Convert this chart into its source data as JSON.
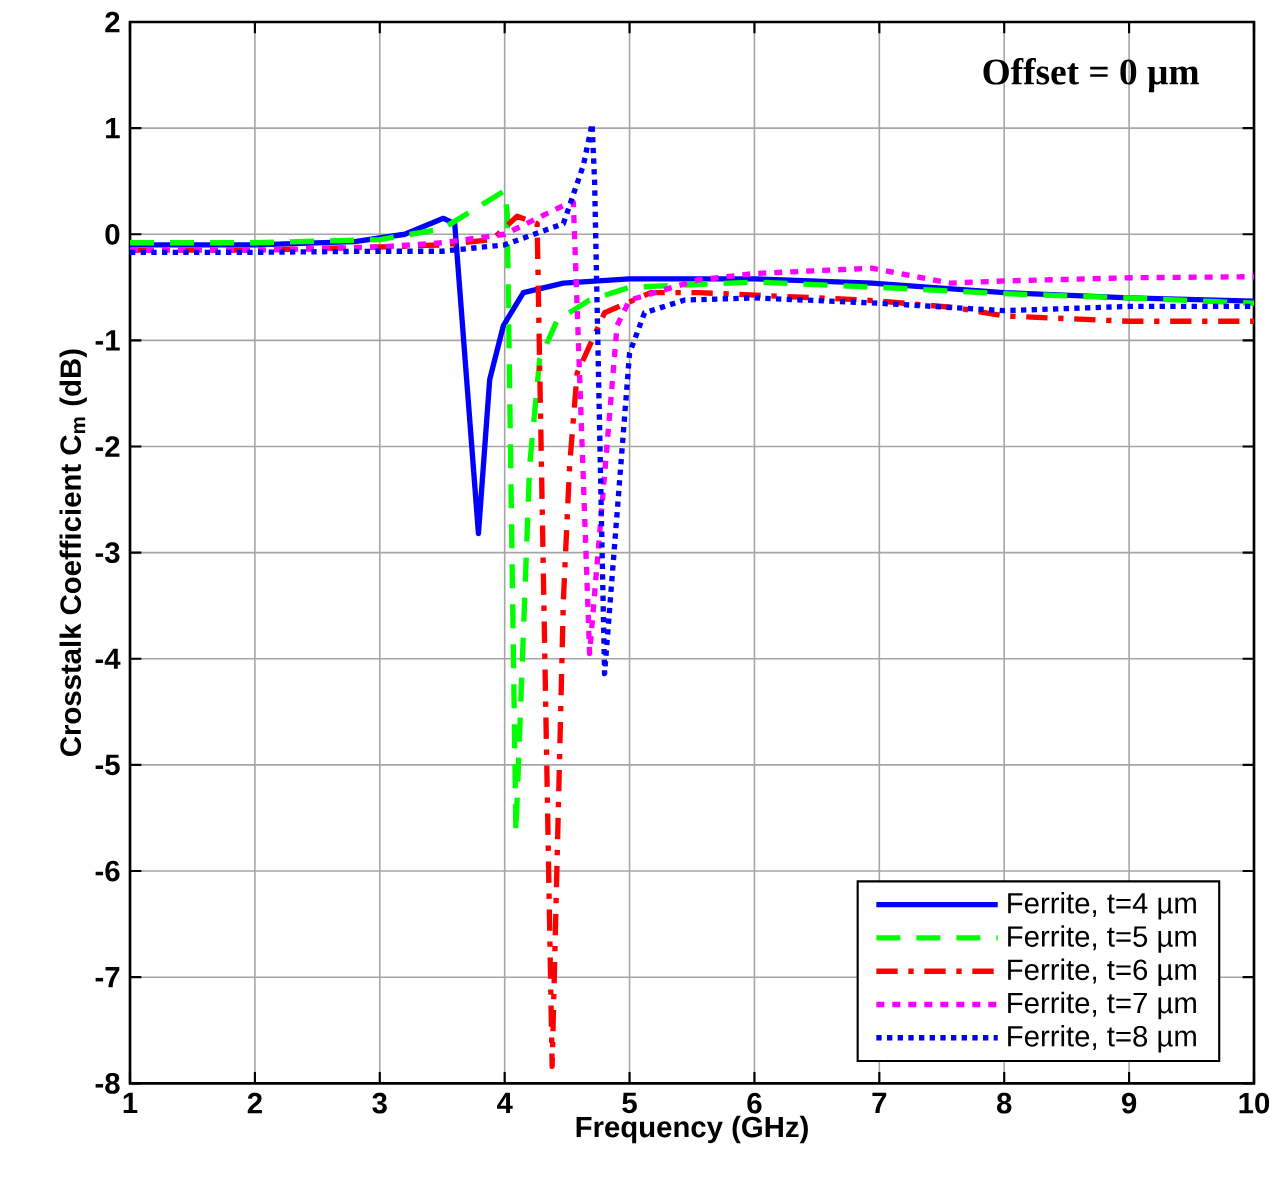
{
  "chart_data": {
    "type": "line",
    "xlabel": "Frequency (GHz)",
    "ylabel": "Crosstalk Coefficient C$_{m}$ (dB)",
    "annotations": [
      "**Offset = 0 µm**"
    ],
    "xlim": [
      1,
      10
    ],
    "ylim": [
      -8,
      2
    ],
    "xticks": [
      1,
      2,
      3,
      4,
      5,
      6,
      7,
      8,
      9,
      10
    ],
    "yticks": [
      -8,
      -7,
      -6,
      -5,
      -4,
      -3,
      -2,
      -1,
      0,
      1,
      2
    ],
    "grid": true,
    "legend": "bottom right",
    "series": [
      {
        "name": "Ferrite, t=4 µm",
        "color": "#0000ff",
        "line_style": "solid",
        "x": [
          1,
          2,
          2.8,
          3.2,
          3.51,
          3.6,
          3.79,
          3.88,
          3.99,
          4.15,
          4.47,
          5,
          6,
          6.94,
          8,
          9,
          10
        ],
        "values": [
          -0.1,
          -0.1,
          -0.07,
          0,
          0.15,
          0.1,
          -2.82,
          -1.37,
          -0.86,
          -0.55,
          -0.46,
          -0.42,
          -0.42,
          -0.46,
          -0.55,
          -0.6,
          -0.63
        ]
      },
      {
        "name": "Ferrite, t=5 µm",
        "color": "#00ff00",
        "line_style": "dashed",
        "x": [
          1,
          2,
          3,
          3.5,
          4.0,
          4.02,
          4.09,
          4.2,
          4.28,
          4.42,
          4.68,
          5,
          6,
          7,
          8,
          9,
          10
        ],
        "values": [
          -0.08,
          -0.08,
          -0.05,
          0.05,
          0.41,
          0.2,
          -5.64,
          -2.18,
          -1.18,
          -0.81,
          -0.62,
          -0.5,
          -0.45,
          -0.5,
          -0.56,
          -0.6,
          -0.65
        ]
      },
      {
        "name": "Ferrite, t=6 µm",
        "color": "#ff0000",
        "line_style": "dashdot",
        "x": [
          1,
          2,
          3,
          3.5,
          3.9,
          4.1,
          4.26,
          4.38,
          4.47,
          4.52,
          4.58,
          4.8,
          5.17,
          5.55,
          6.9,
          7.6,
          8,
          9,
          10
        ],
        "values": [
          -0.15,
          -0.15,
          -0.12,
          -0.1,
          -0.05,
          0.17,
          0.1,
          -7.84,
          -3.45,
          -2.18,
          -1.31,
          -0.74,
          -0.55,
          -0.55,
          -0.62,
          -0.69,
          -0.77,
          -0.82,
          -0.82
        ]
      },
      {
        "name": "Ferrite, t=7 µm",
        "color": "#ff00ff",
        "line_style": "dotted",
        "x": [
          1,
          2,
          3,
          3.5,
          4,
          4.47,
          4.55,
          4.68,
          4.9,
          5.0,
          5.55,
          6,
          6.94,
          7.57,
          8,
          9,
          10
        ],
        "values": [
          -0.15,
          -0.15,
          -0.12,
          -0.08,
          0,
          0.27,
          0.3,
          -3.95,
          -0.86,
          -0.62,
          -0.43,
          -0.37,
          -0.32,
          -0.46,
          -0.44,
          -0.41,
          -0.4
        ]
      },
      {
        "name": "Ferrite, t=8 µm",
        "color": "#0000ff",
        "line_style": "dotted",
        "x": [
          1,
          2,
          3,
          3.5,
          4,
          4.47,
          4.63,
          4.7,
          4.72,
          4.8,
          5.0,
          5.12,
          5.44,
          6,
          7,
          8,
          9,
          10
        ],
        "values": [
          -0.17,
          -0.17,
          -0.16,
          -0.16,
          -0.1,
          0.1,
          0.65,
          1.04,
          0.5,
          -4.14,
          -1.12,
          -0.74,
          -0.62,
          -0.6,
          -0.65,
          -0.72,
          -0.68,
          -0.68
        ]
      }
    ]
  }
}
